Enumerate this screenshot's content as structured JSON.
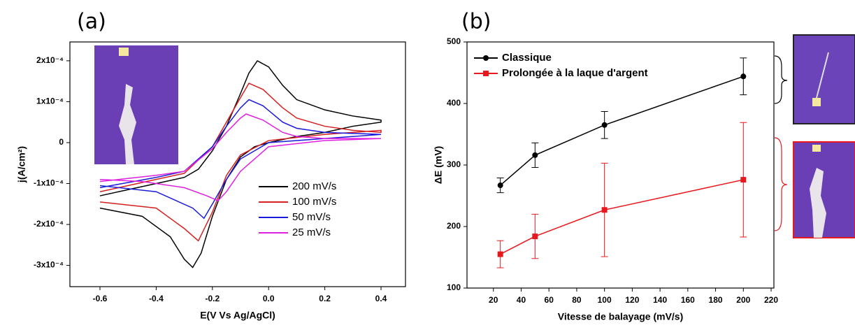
{
  "chart_data": [
    {
      "type": "line",
      "title": "(a)",
      "x_label": "E(V Vs Ag/AgCl)",
      "y_label": "j(A/cm²)",
      "xlim": [
        -0.707,
        0.487
      ],
      "xticks": [
        -0.6,
        -0.4,
        -0.2,
        {
          "value": 0,
          "label": "0.0"
        },
        0.2,
        0.4
      ],
      "ylim": [
        -0.000352,
        0.000246
      ],
      "yticks": [
        {
          "value": -0.0003,
          "label": "-3x10⁻⁴"
        },
        {
          "value": -0.0002,
          "label": "-2x10⁻⁴"
        },
        {
          "value": -0.0001,
          "label": "-1x10⁻⁴"
        },
        0,
        {
          "value": 0.0001,
          "label": "1x10⁻⁴"
        },
        {
          "value": 0.0002,
          "label": "2x10⁻⁴"
        }
      ],
      "legend": "lower right",
      "series": [
        {
          "name": "200 mV/s",
          "color": "#000000",
          "x": [
            -0.6,
            -0.5,
            -0.4,
            -0.3,
            -0.25,
            -0.2,
            -0.15,
            -0.1,
            -0.07,
            -0.04,
            0.0,
            0.05,
            0.1,
            0.2,
            0.3,
            0.4,
            0.4,
            0.3,
            0.2,
            0.1,
            0.0,
            -0.05,
            -0.1,
            -0.15,
            -0.2,
            -0.24,
            -0.27,
            -0.3,
            -0.35,
            -0.45,
            -0.6
          ],
          "values": [
            -0.00013,
            -0.000115,
            -0.0001,
            -8.5e-05,
            -6.5e-05,
            -2e-05,
            4e-05,
            0.00012,
            0.00017,
            0.0002,
            0.000185,
            0.00014,
            0.000105,
            8e-05,
            6.5e-05,
            5.5e-05,
            5e-05,
            4e-05,
            2.5e-05,
            1.5e-05,
            0.0,
            -1e-05,
            -3.5e-05,
            -9e-05,
            -0.00018,
            -0.00027,
            -0.000305,
            -0.000285,
            -0.00023,
            -0.00018,
            -0.00016
          ]
        },
        {
          "name": "100 mV/s",
          "color": "#d62020",
          "x": [
            -0.6,
            -0.4,
            -0.3,
            -0.2,
            -0.15,
            -0.1,
            -0.07,
            -0.02,
            0.05,
            0.1,
            0.2,
            0.3,
            0.4,
            0.4,
            0.2,
            0.0,
            -0.1,
            -0.15,
            -0.2,
            -0.25,
            -0.3,
            -0.4,
            -0.6
          ],
          "values": [
            -0.00012,
            -9e-05,
            -7.5e-05,
            -1e-05,
            5e-05,
            0.00011,
            0.000145,
            0.00013,
            8.5e-05,
            6e-05,
            4e-05,
            3e-05,
            2.5e-05,
            3e-05,
            2e-05,
            5e-06,
            -3e-05,
            -8e-05,
            -0.00017,
            -0.00024,
            -0.00021,
            -0.00016,
            -0.000145
          ]
        },
        {
          "name": "50 mV/s",
          "color": "#1a1adb",
          "x": [
            -0.6,
            -0.4,
            -0.3,
            -0.2,
            -0.15,
            -0.1,
            -0.07,
            -0.02,
            0.05,
            0.1,
            0.2,
            0.4,
            0.4,
            0.2,
            0.0,
            -0.1,
            -0.15,
            -0.2,
            -0.23,
            -0.27,
            -0.4,
            -0.6
          ],
          "values": [
            -0.00011,
            -8.5e-05,
            -7e-05,
            -1e-05,
            4e-05,
            8.5e-05,
            0.000105,
            9e-05,
            5e-05,
            3.5e-05,
            2.5e-05,
            2e-05,
            2e-05,
            1e-05,
            0.0,
            -4e-05,
            -9e-05,
            -0.00015,
            -0.000185,
            -0.00016,
            -0.00012,
            -0.000105
          ]
        },
        {
          "name": "25 mV/s",
          "color": "#e020e0",
          "x": [
            -0.6,
            -0.4,
            -0.3,
            -0.2,
            -0.15,
            -0.1,
            -0.08,
            -0.02,
            0.05,
            0.1,
            0.2,
            0.4,
            0.4,
            0.2,
            0.0,
            -0.1,
            -0.15,
            -0.18,
            -0.22,
            -0.3,
            -0.45,
            -0.6
          ],
          "values": [
            -9.5e-05,
            -8e-05,
            -7e-05,
            -1.5e-05,
            2.5e-05,
            6e-05,
            7e-05,
            5.5e-05,
            2.5e-05,
            1.5e-05,
            1e-05,
            1e-05,
            1e-05,
            5e-06,
            -1e-05,
            -7e-05,
            -0.00012,
            -0.000142,
            -0.00013,
            -0.00011,
            -9.5e-05,
            -9e-05
          ]
        }
      ]
    },
    {
      "type": "line",
      "title": "(b)",
      "x_label": "Vitesse de balayage (mV/s)",
      "y_label": "ΔE (mV)",
      "xlim": [
        1,
        222
      ],
      "xticks": [
        20,
        40,
        60,
        80,
        100,
        120,
        140,
        160,
        180,
        200,
        220
      ],
      "ylim": [
        100,
        500
      ],
      "yticks": [
        100,
        200,
        300,
        400,
        500
      ],
      "legend": "upper left",
      "x": [
        25,
        50,
        100,
        200
      ],
      "series": [
        {
          "name": "Classique",
          "color": "#000000",
          "marker": "circle",
          "values": [
            267,
            316,
            365,
            444
          ],
          "errors": [
            12,
            20,
            22,
            30
          ]
        },
        {
          "name": "Prolongée à la laque d'argent",
          "color": "#e8191e",
          "marker": "square",
          "values": [
            155,
            184,
            227,
            276
          ],
          "errors": [
            22,
            36,
            76,
            93
          ]
        }
      ]
    }
  ]
}
